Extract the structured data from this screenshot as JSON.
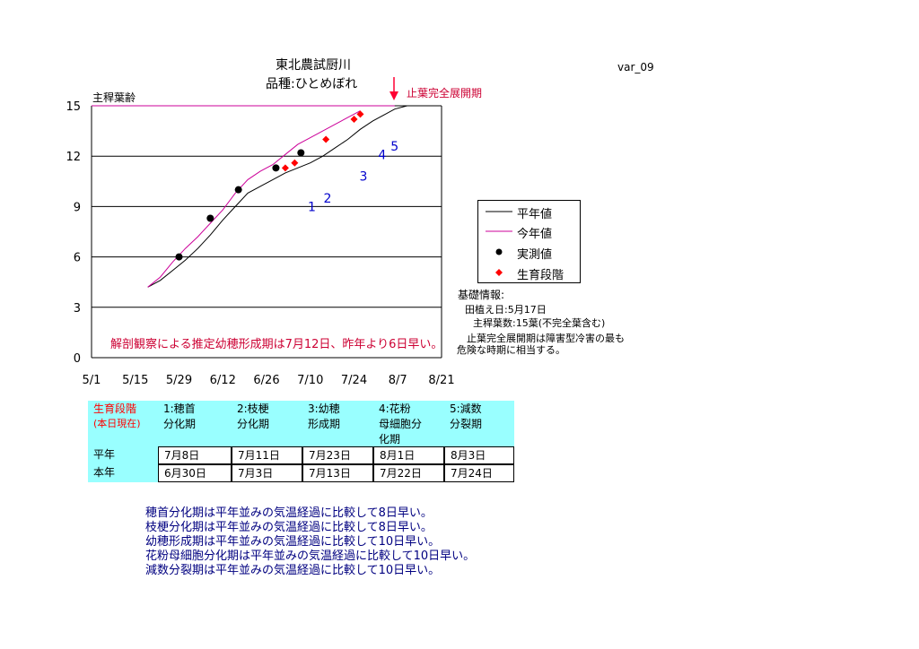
{
  "chart_data": {
    "type": "line",
    "title": "東北農試厨川",
    "subtitle": "品種:ひとめぼれ",
    "ylabel": "主稈葉齢",
    "version_label": "var_09",
    "ylim": [
      0,
      15
    ],
    "yticks": [
      "0",
      "3",
      "6",
      "9",
      "12",
      "15"
    ],
    "x_ticks": [
      "5/1",
      "5/15",
      "5/29",
      "6/12",
      "6/26",
      "7/10",
      "7/24",
      "8/7",
      "8/21"
    ],
    "x_tick_days": [
      0,
      14,
      28,
      42,
      56,
      70,
      84,
      98,
      112
    ],
    "grid": "horizontal",
    "legend_position": "right",
    "series": [
      {
        "name": "平年値",
        "color": "#000000",
        "kind": "line",
        "x": [
          18,
          22,
          26,
          30,
          34,
          38,
          42,
          46,
          50,
          54,
          58,
          62,
          66,
          70,
          74,
          78,
          82,
          86,
          90,
          94,
          97,
          101
        ],
        "y": [
          4.2,
          4.6,
          5.2,
          5.8,
          6.5,
          7.3,
          8.2,
          9.0,
          9.8,
          10.2,
          10.6,
          11.0,
          11.3,
          11.6,
          12.0,
          12.5,
          13.0,
          13.6,
          14.1,
          14.5,
          14.8,
          15.0
        ]
      },
      {
        "name": "今年値",
        "color": "#cc0099",
        "kind": "line",
        "x": [
          18,
          22,
          26,
          30,
          34,
          38,
          42,
          46,
          50,
          54,
          58,
          62,
          66,
          70,
          74,
          78,
          82,
          86
        ],
        "y": [
          4.2,
          4.8,
          5.7,
          6.5,
          7.2,
          8.0,
          8.8,
          9.8,
          10.6,
          11.1,
          11.5,
          12.1,
          12.7,
          13.1,
          13.5,
          13.9,
          14.3,
          14.7
        ]
      },
      {
        "name": "実測値",
        "color": "#000000",
        "kind": "point",
        "x": [
          28,
          38,
          47,
          59,
          67
        ],
        "y": [
          6.0,
          8.3,
          10.0,
          11.3,
          12.2
        ]
      },
      {
        "name": "生育段階",
        "color": "#ff0000",
        "kind": "diamond",
        "x": [
          62,
          65,
          75,
          84,
          86
        ],
        "y": [
          11.3,
          11.6,
          13.0,
          14.2,
          14.5
        ]
      }
    ],
    "annotations": {
      "arrow_label": "止葉完全展開期",
      "stage_numbers": [
        {
          "label": "1",
          "x": 70.5,
          "y": 9.0
        },
        {
          "label": "2",
          "x": 75.5,
          "y": 9.5
        },
        {
          "label": "3",
          "x": 87,
          "y": 10.8
        },
        {
          "label": "4",
          "x": 93,
          "y": 12.1
        },
        {
          "label": "5",
          "x": 97,
          "y": 12.6
        }
      ],
      "pred_text": "解剖観察による推定幼穂形成期は7月12日、昨年より6日早い。"
    }
  },
  "info": {
    "heading": "基礎情報:",
    "planting": "田植え日:5月17日",
    "leaf_count": "主稈葉数:15葉(不完全葉含む)",
    "note_line1": "止葉完全展開期は障害型冷害の最も",
    "note_line2": "危険な時期に相当する。"
  },
  "stage_table": {
    "corner_label_1": "生育段階",
    "corner_label_2": "(本日現在)",
    "headers": [
      [
        "1:穂首",
        "分化期"
      ],
      [
        "2:枝梗",
        "分化期"
      ],
      [
        "3:幼穂",
        "形成期"
      ],
      [
        "4:花粉",
        "母細胞分",
        "化期"
      ],
      [
        "5:減数",
        "分裂期"
      ]
    ],
    "rows": [
      {
        "label": "平年",
        "values": [
          "7月8日",
          "7月11日",
          "7月23日",
          "8月1日",
          "8月3日"
        ]
      },
      {
        "label": "本年",
        "values": [
          "6月30日",
          "7月3日",
          "7月13日",
          "7月22日",
          "7月24日"
        ]
      }
    ]
  },
  "notes": [
    "穂首分化期は平年並みの気温経過に比較して8日早い。",
    "枝梗分化期は平年並みの気温経過に比較して8日早い。",
    "幼穂形成期は平年並みの気温経過に比較して10日早い。",
    "花粉母細胞分化期は平年並みの気温経過に比較して10日早い。",
    "減数分裂期は平年並みの気温経過に比較して10日早い。"
  ]
}
